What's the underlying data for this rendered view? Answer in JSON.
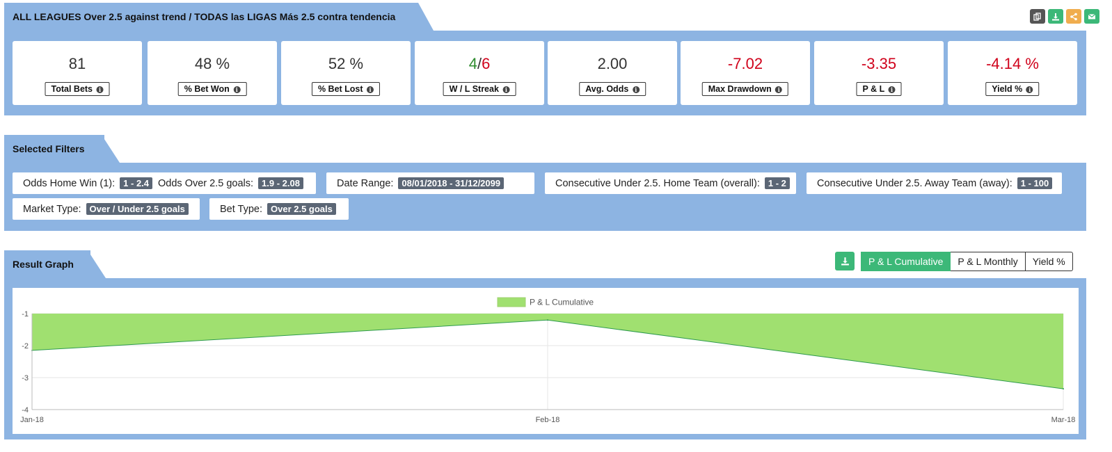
{
  "header": {
    "title": "ALL LEAGUES Over 2.5 against trend / TODAS las LIGAS Más 2.5 contra tendencia",
    "icons": [
      {
        "name": "copy-icon",
        "color": "#555555"
      },
      {
        "name": "download-icon",
        "color": "#3cb878"
      },
      {
        "name": "share-icon",
        "color": "#f0ad4e"
      },
      {
        "name": "email-icon",
        "color": "#3cb878"
      }
    ]
  },
  "stats": [
    {
      "value": "81",
      "label": "Total Bets"
    },
    {
      "value": "48 %",
      "label": "% Bet Won"
    },
    {
      "value": "52 %",
      "label": "% Bet Lost"
    },
    {
      "value_win": "4",
      "value_sep": "/",
      "value_loss": "6",
      "label": "W / L Streak"
    },
    {
      "value": "2.00",
      "label": "Avg. Odds"
    },
    {
      "value": "-7.02",
      "label": "Max Drawdown"
    },
    {
      "value": "-3.35",
      "label": "P & L"
    },
    {
      "value": "-4.14 %",
      "label": "Yield %"
    }
  ],
  "filters": {
    "title": "Selected Filters",
    "chips": [
      {
        "l1": "Odds Home Win (1):",
        "v1": "1 - 2.4",
        "l2": "Odds Over 2.5 goals:",
        "v2": "1.9 - 2.08"
      },
      {
        "l1": "Date Range:",
        "v1": "08/01/2018 - 31/12/2099"
      },
      {
        "l1": "Consecutive Under 2.5. Home Team (overall):",
        "v1": "1 - 2"
      },
      {
        "l1": "Consecutive Under 2.5. Away Team (away):",
        "v1": "1 - 100"
      },
      {
        "l1": "Market Type:",
        "v1": "Over / Under 2.5 goals"
      },
      {
        "l1": "Bet Type:",
        "v1": "Over 2.5 goals"
      }
    ]
  },
  "graph": {
    "title": "Result Graph",
    "buttons": [
      "P & L Cumulative",
      "P & L Monthly",
      "Yield %"
    ],
    "active_button": "P & L Cumulative"
  },
  "chart_data": {
    "type": "area",
    "x": [
      "Jan-18",
      "Feb-18",
      "Mar-18"
    ],
    "series": [
      {
        "name": "P & L Cumulative",
        "values": [
          -2.15,
          -1.2,
          -3.35
        ]
      }
    ],
    "yticks": [
      -1,
      -2,
      -3,
      -4
    ],
    "ylim": [
      -4,
      -1
    ],
    "fill_color": "#a0e070",
    "line_color": "#2e9b4e",
    "legend": "top-center",
    "grid": true
  }
}
